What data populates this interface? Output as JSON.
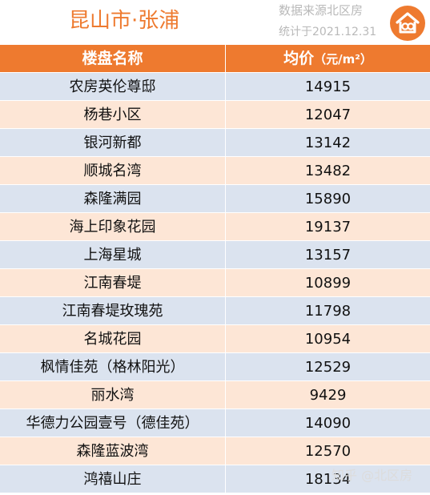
{
  "header": {
    "title": "昆山市·张浦",
    "source_text": "数据来源北区房",
    "stat_text": "统计于2021.12.31"
  },
  "table": {
    "col_name": "楼盘名称",
    "col_price": "均价",
    "col_price_unit": "（元/m²）",
    "rows": [
      {
        "name": "农房英伦尊邸",
        "price": "14915"
      },
      {
        "name": "杨巷小区",
        "price": "12047"
      },
      {
        "name": "银河新都",
        "price": "13142"
      },
      {
        "name": "顺城名湾",
        "price": "13482"
      },
      {
        "name": "森隆满园",
        "price": "15890"
      },
      {
        "name": "海上印象花园",
        "price": "19137"
      },
      {
        "name": "上海星城",
        "price": "13157"
      },
      {
        "name": "江南春堤",
        "price": "10899"
      },
      {
        "name": "江南春堤玫瑰苑",
        "price": "11798"
      },
      {
        "name": "名城花园",
        "price": "10954"
      },
      {
        "name": "枫情佳苑（格林阳光）",
        "price": "12529"
      },
      {
        "name": "丽水湾",
        "price": "9429"
      },
      {
        "name": "华德力公园壹号（德佳苑）",
        "price": "14090"
      },
      {
        "name": "森隆蓝波湾",
        "price": "12570"
      },
      {
        "name": "鸿禧山庄",
        "price": "18134"
      }
    ]
  },
  "watermark": "知乎 @北区房",
  "colors": {
    "accent": "#ee7a2f",
    "row_even": "#fde6d6",
    "row_odd": "#dbe3ef"
  },
  "icons": {
    "logo": "house-bubble-logo-icon"
  }
}
